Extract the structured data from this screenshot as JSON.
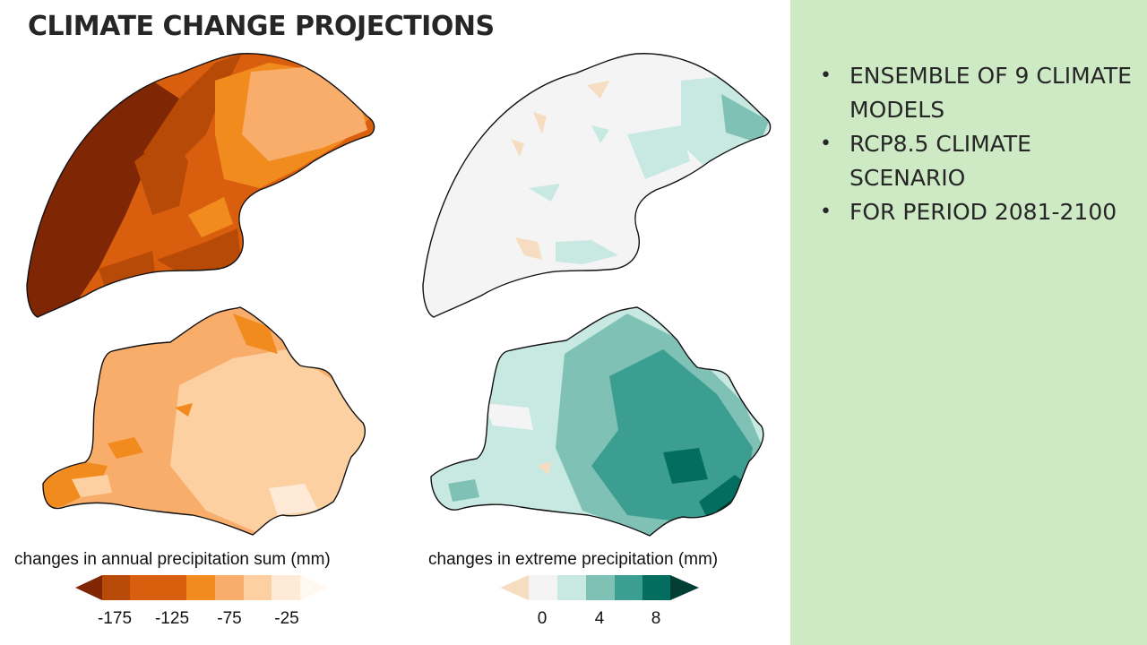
{
  "slide": {
    "title": "CLIMATE CHANGE PROJECTIONS",
    "panel_background": "#cdeac5",
    "bullets": [
      "ENSEMBLE OF 9 CLIMATE MODELS",
      "RCP8.5 CLIMATE SCENARIO",
      "FOR PERIOD 2081-2100"
    ]
  },
  "legend_annual": {
    "caption": "changes in annual precipitation sum (mm)",
    "ticks": [
      "-175",
      "-125",
      "-75",
      "-25"
    ],
    "colors": [
      "#7f2704",
      "#b84a08",
      "#d95f0e",
      "#f28b1e",
      "#f9ad6b",
      "#fdd0a2",
      "#feead7",
      "#fff8f0"
    ]
  },
  "legend_extreme": {
    "caption": "changes in extreme precipitation (mm)",
    "ticks": [
      "0",
      "4",
      "8"
    ],
    "colors": [
      "#f6dcc0",
      "#f4f4f4",
      "#c7e9e2",
      "#80c1b5",
      "#3b9e91",
      "#036e5f",
      "#013d33"
    ]
  }
}
